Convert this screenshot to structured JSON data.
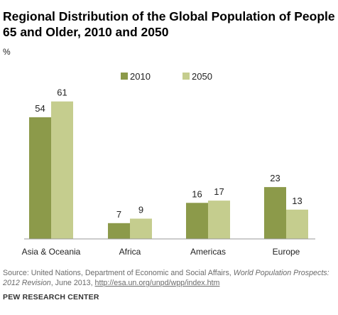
{
  "title": "Regional Distribution of the Global Population of People 65 and Older, 2010 and 2050",
  "unit": "%",
  "chart_data": {
    "type": "bar",
    "categories": [
      "Asia & Oceania",
      "Africa",
      "Americas",
      "Europe"
    ],
    "series": [
      {
        "name": "2010",
        "values": [
          54,
          7,
          16,
          23
        ],
        "color": "#8c9a4a"
      },
      {
        "name": "2050",
        "values": [
          61,
          9,
          17,
          13
        ],
        "color": "#c5cd8e"
      }
    ],
    "ylim": [
      0,
      65
    ],
    "grid": false,
    "legend": "top-center"
  },
  "source": {
    "prefix": "Source: United Nations, Department of Economic and Social Affairs, ",
    "publication": "World Population Prospects: 2012 Revision",
    "middle": ", June 2013, ",
    "link": "http://esa.un.org/unpd/wpp/index.htm"
  },
  "credit": "PEW RESEARCH CENTER"
}
